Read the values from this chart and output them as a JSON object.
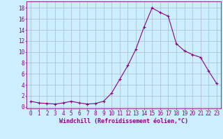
{
  "x": [
    0,
    1,
    2,
    3,
    4,
    5,
    6,
    7,
    8,
    9,
    10,
    11,
    12,
    13,
    14,
    15,
    16,
    17,
    18,
    19,
    20,
    21,
    22,
    23
  ],
  "y": [
    1.0,
    0.7,
    0.6,
    0.5,
    0.7,
    1.0,
    0.7,
    0.5,
    0.6,
    1.0,
    2.5,
    5.0,
    7.5,
    10.5,
    14.5,
    18.0,
    17.2,
    16.5,
    11.5,
    10.2,
    9.5,
    9.0,
    6.5,
    4.2
  ],
  "line_color": "#880088",
  "marker": "+",
  "marker_size": 3,
  "line_width": 0.8,
  "bg_color": "#cceeff",
  "grid_color": "#aabbcc",
  "ylabel_ticks": [
    0,
    2,
    4,
    6,
    8,
    10,
    12,
    14,
    16,
    18
  ],
  "xlabel": "Windchill (Refroidissement éolien,°C)",
  "xlim": [
    -0.5,
    23.5
  ],
  "ylim": [
    -0.3,
    19.2
  ],
  "tick_fontsize": 5.5,
  "xlabel_fontsize": 6.0
}
